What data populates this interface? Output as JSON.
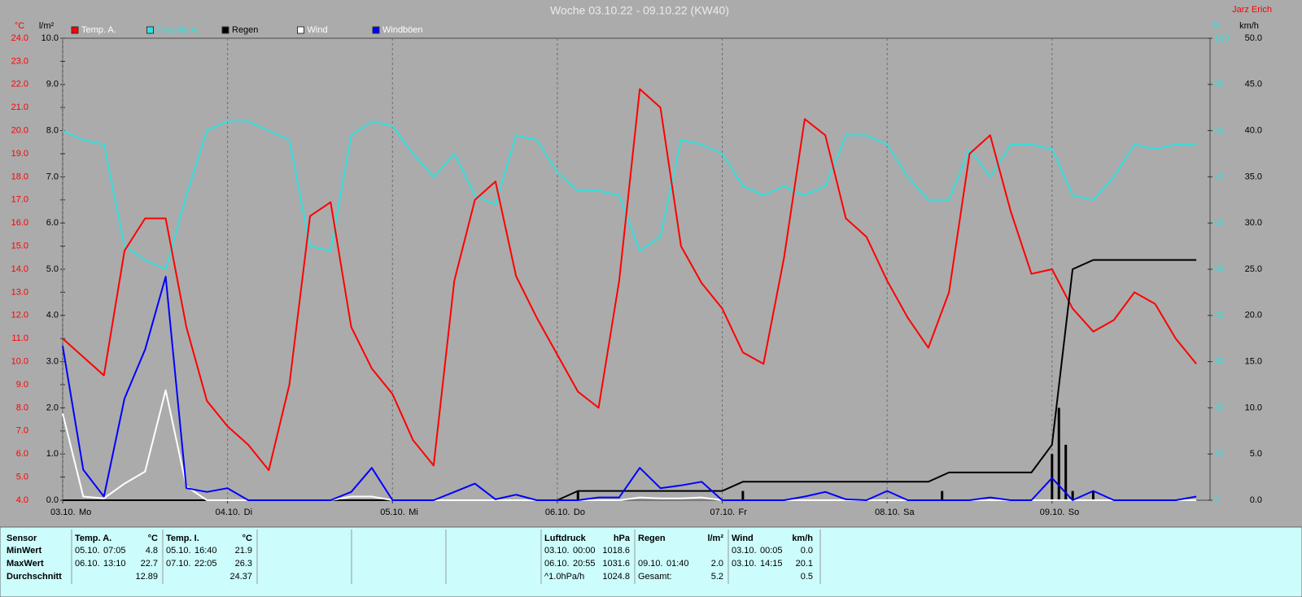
{
  "chart_data": {
    "type": "line",
    "title": "Woche 03.10.22 - 09.10.22 (KW40)",
    "author": "Jarz Erich",
    "y_unit": "°C",
    "y2_unit": "l/m²",
    "y3_unit": "%",
    "y4_unit": "km/h",
    "xlim": [
      0,
      167
    ],
    "xticks": [
      {
        "value": 0,
        "label": "03.10.",
        "day": "Mo"
      },
      {
        "value": 24,
        "label": "04.10.",
        "day": "Di"
      },
      {
        "value": 48,
        "label": "05.10.",
        "day": "Mi"
      },
      {
        "value": 72,
        "label": "06.10.",
        "day": "Do"
      },
      {
        "value": 96,
        "label": "07.10.",
        "day": "Fr"
      },
      {
        "value": 120,
        "label": "08.10.",
        "day": "Sa"
      },
      {
        "value": 144,
        "label": "09.10.",
        "day": "So"
      }
    ],
    "ylim": [
      4,
      24
    ],
    "yticks": [
      {
        "value": 4,
        "label": "4.0"
      },
      {
        "value": 5,
        "label": "5.0"
      },
      {
        "value": 6,
        "label": "6.0"
      },
      {
        "value": 7,
        "label": "7.0"
      },
      {
        "value": 8,
        "label": "8.0"
      },
      {
        "value": 9,
        "label": "9.0"
      },
      {
        "value": 10,
        "label": "10.0"
      },
      {
        "value": 11,
        "label": "11.0"
      },
      {
        "value": 12,
        "label": "12.0"
      },
      {
        "value": 13,
        "label": "13.0"
      },
      {
        "value": 14,
        "label": "14.0"
      },
      {
        "value": 15,
        "label": "15.0"
      },
      {
        "value": 16,
        "label": "16.0"
      },
      {
        "value": 17,
        "label": "17.0"
      },
      {
        "value": 18,
        "label": "18.0"
      },
      {
        "value": 19,
        "label": "19.0"
      },
      {
        "value": 20,
        "label": "20.0"
      },
      {
        "value": 21,
        "label": "21.0"
      },
      {
        "value": 22,
        "label": "22.0"
      },
      {
        "value": 23,
        "label": "23.0"
      },
      {
        "value": 24,
        "label": "24.0"
      }
    ],
    "y2lim": [
      0,
      10
    ],
    "y2ticks": [
      {
        "value": 0,
        "label": "0.0"
      },
      {
        "value": 1,
        "label": "1.0"
      },
      {
        "value": 2,
        "label": "2.0"
      },
      {
        "value": 3,
        "label": "3.0"
      },
      {
        "value": 4,
        "label": "4.0"
      },
      {
        "value": 5,
        "label": "5.0"
      },
      {
        "value": 6,
        "label": "6.0"
      },
      {
        "value": 7,
        "label": "7.0"
      },
      {
        "value": 8,
        "label": "8.0"
      },
      {
        "value": 9,
        "label": "9.0"
      },
      {
        "value": 10,
        "label": "10.0"
      }
    ],
    "y3lim": [
      0,
      100
    ],
    "y3ticks": [
      0,
      10,
      20,
      30,
      40,
      50,
      60,
      70,
      80,
      90,
      100
    ],
    "y4lim": [
      0,
      50
    ],
    "y4ticks": [
      {
        "value": 0,
        "label": "0.0"
      },
      {
        "value": 5,
        "label": "5.0"
      },
      {
        "value": 10,
        "label": "10.0"
      },
      {
        "value": 15,
        "label": "15.0"
      },
      {
        "value": 20,
        "label": "20.0"
      },
      {
        "value": 25,
        "label": "25.0"
      },
      {
        "value": 30,
        "label": "30.0"
      },
      {
        "value": 35,
        "label": "35.0"
      },
      {
        "value": 40,
        "label": "40.0"
      },
      {
        "value": 45,
        "label": "45.0"
      },
      {
        "value": 50,
        "label": "50.0"
      }
    ],
    "grid": "x",
    "x": [
      0,
      3,
      6,
      9,
      12,
      15,
      18,
      21,
      24,
      27,
      30,
      33,
      36,
      39,
      42,
      45,
      48,
      51,
      54,
      57,
      60,
      63,
      66,
      69,
      72,
      75,
      78,
      81,
      84,
      87,
      90,
      93,
      96,
      99,
      102,
      105,
      108,
      111,
      114,
      117,
      120,
      123,
      126,
      129,
      132,
      135,
      138,
      141,
      144,
      147,
      150,
      153,
      156,
      159,
      162,
      165
    ],
    "series": [
      {
        "name": "Temp. A.",
        "color": "#ff0000",
        "axis": "y",
        "values": [
          11.0,
          10.2,
          9.4,
          14.8,
          16.2,
          16.2,
          11.5,
          8.3,
          7.2,
          6.4,
          5.3,
          9.0,
          16.3,
          16.9,
          11.5,
          9.7,
          8.6,
          6.6,
          5.5,
          13.5,
          17.0,
          17.8,
          13.7,
          11.9,
          10.3,
          8.7,
          8.0,
          13.5,
          21.8,
          21.0,
          15.0,
          13.4,
          12.3,
          10.4,
          9.9,
          14.5,
          20.5,
          19.8,
          16.2,
          15.4,
          13.5,
          11.9,
          10.6,
          13.0,
          19.0,
          19.8,
          16.5,
          13.8,
          14.0,
          12.3,
          11.3,
          11.8,
          13.0,
          12.5,
          11.0,
          9.9
        ]
      },
      {
        "name": "Feuchte A.",
        "color": "#33e0e0",
        "axis": "y3",
        "values": [
          80,
          78,
          77,
          55,
          52,
          50,
          66,
          80,
          82,
          82,
          80,
          78,
          55,
          54,
          79,
          82,
          81,
          75,
          70,
          75,
          66,
          64,
          79,
          78,
          71,
          67,
          67,
          66,
          54,
          57,
          78,
          77,
          75,
          68,
          66,
          68,
          66,
          68,
          79,
          79,
          77,
          70,
          65,
          65,
          76,
          70,
          77,
          77,
          76,
          66,
          65,
          70,
          77,
          76,
          77,
          77
        ]
      },
      {
        "name": "Regen",
        "color": "#000000",
        "axis": "y2",
        "values": [
          0,
          0,
          0,
          0,
          0,
          0,
          0,
          0,
          0,
          0,
          0,
          0,
          0,
          0,
          0,
          0,
          0,
          0,
          0,
          0,
          0,
          0,
          0,
          0,
          0,
          0.2,
          0.2,
          0.2,
          0.2,
          0.2,
          0.2,
          0.2,
          0.2,
          0.4,
          0.4,
          0.4,
          0.4,
          0.4,
          0.4,
          0.4,
          0.4,
          0.4,
          0.4,
          0.6,
          0.6,
          0.6,
          0.6,
          0.6,
          1.2,
          5.0,
          5.2,
          5.2,
          5.2,
          5.2,
          5.2,
          5.2
        ]
      },
      {
        "name": "Wind",
        "color": "#ffffff",
        "axis": "y4",
        "values": [
          9.4,
          0.4,
          0.2,
          1.8,
          3.1,
          11.9,
          1.5,
          0,
          0,
          0,
          0,
          0,
          0,
          0,
          0.4,
          0.4,
          0,
          0,
          0,
          0,
          0,
          0,
          0,
          0,
          0,
          0,
          0,
          0,
          0.3,
          0.2,
          0.2,
          0.3,
          0,
          0,
          0,
          0,
          0,
          0,
          0,
          0,
          0,
          0,
          0,
          0,
          0,
          0,
          0,
          0,
          0,
          0,
          0,
          0,
          0,
          0,
          0,
          0
        ]
      },
      {
        "name": "Windböen",
        "color": "#0000ff",
        "axis": "y4",
        "values": [
          16.7,
          3.3,
          0.4,
          11,
          16.3,
          24.2,
          1.3,
          0.9,
          1.3,
          0,
          0,
          0,
          0,
          0,
          0.9,
          3.5,
          0,
          0,
          0,
          0.9,
          1.8,
          0.1,
          0.6,
          0,
          0,
          0,
          0.3,
          0.3,
          3.5,
          1.3,
          1.6,
          2.0,
          0,
          0,
          0,
          0,
          0.4,
          0.9,
          0.1,
          0,
          1.0,
          0,
          0,
          0,
          0,
          0.3,
          0,
          0,
          2.4,
          0,
          1.0,
          0,
          0,
          0,
          0,
          0.4
        ]
      }
    ],
    "bars": {
      "color": "#000000",
      "axis": "y2",
      "x": [
        75,
        99,
        128,
        144,
        145,
        146,
        147,
        150
      ],
      "values": [
        0.2,
        0.2,
        0.2,
        1.0,
        2.0,
        1.2,
        0.2,
        0.2
      ]
    }
  },
  "stats": {
    "row_labels": [
      "Sensor",
      "MinWert",
      "MaxWert",
      "Durchschnitt"
    ],
    "blocks": [
      {
        "title": "Temp. A.",
        "unit": "°C",
        "min": {
          "date": "05.10.",
          "time": "07:05",
          "value": "4.8"
        },
        "max": {
          "date": "06.10.",
          "time": "13:10",
          "value": "22.7"
        },
        "avg": {
          "value": "12.89"
        }
      },
      {
        "title": "Temp. I.",
        "unit": "°C",
        "min": {
          "date": "05.10.",
          "time": "16:40",
          "value": "21.9"
        },
        "max": {
          "date": "07.10.",
          "time": "22:05",
          "value": "26.3"
        },
        "avg": {
          "value": "24.37"
        }
      },
      {
        "title": "Luftdruck",
        "unit": "hPa",
        "min": {
          "date": "03.10.",
          "time": "00:00",
          "value": "1018.6"
        },
        "max": {
          "date": "06.10.",
          "time": "20:55",
          "value": "1031.6"
        },
        "avg": {
          "note": "^1.0hPa/h",
          "value": "1024.8"
        }
      },
      {
        "title": "Regen",
        "unit": "l/m²",
        "max": {
          "date": "09.10.",
          "time": "01:40",
          "value": "2.0"
        },
        "avg": {
          "note": "Gesamt:",
          "value": "5.2"
        }
      },
      {
        "title": "Wind",
        "unit": "km/h",
        "min": {
          "date": "03.10.",
          "time": "00:05",
          "value": "0.0"
        },
        "max": {
          "date": "03.10.",
          "time": "14:15",
          "value": "20.1"
        },
        "avg": {
          "value": "0.5"
        }
      }
    ]
  }
}
